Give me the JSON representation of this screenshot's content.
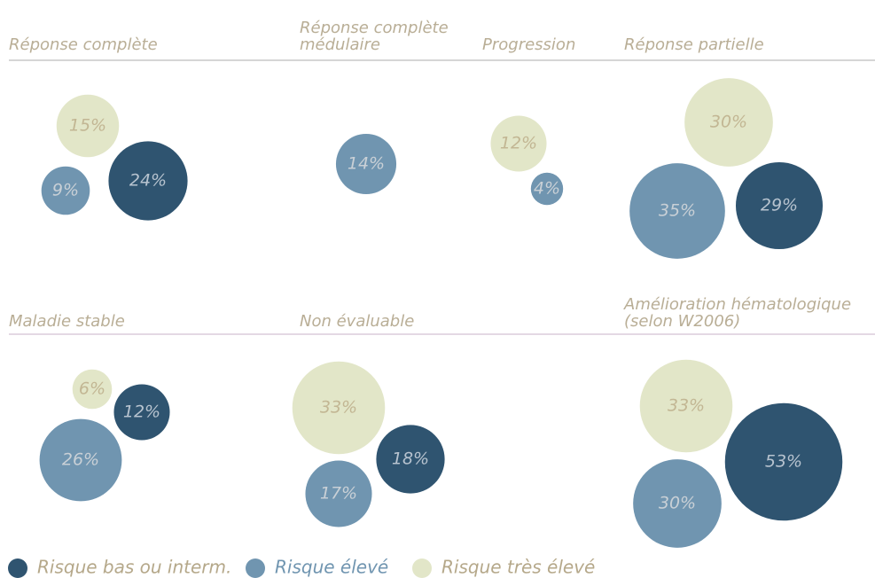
{
  "chart_data": {
    "type": "bubble",
    "series": [
      {
        "name": "Risque bas ou interm.",
        "color": "#2f5470"
      },
      {
        "name": "Risque élevé",
        "color": "#7095b0"
      },
      {
        "name": "Risque très élevé",
        "color": "#e2e6c8"
      }
    ],
    "panels": [
      {
        "title": "Réponse complète",
        "values": [
          24,
          9,
          15
        ],
        "value_labels": [
          "24%",
          "9%",
          "15%"
        ]
      },
      {
        "title": "Réponse complète médulaire",
        "values": [
          null,
          14,
          null
        ],
        "value_labels": [
          null,
          "14%",
          null
        ]
      },
      {
        "title": "Progression",
        "values": [
          null,
          4,
          12
        ],
        "value_labels": [
          null,
          "4%",
          "12%"
        ]
      },
      {
        "title": "Réponse partielle",
        "values": [
          29,
          35,
          30
        ],
        "value_labels": [
          "29%",
          "35%",
          "30%"
        ]
      },
      {
        "title": "Maladie stable",
        "values": [
          12,
          26,
          6
        ],
        "value_labels": [
          "12%",
          "26%",
          "6%"
        ]
      },
      {
        "title": "Non évaluable",
        "values": [
          18,
          17,
          33
        ],
        "value_labels": [
          "18%",
          "17%",
          "33%"
        ]
      },
      {
        "title": "Amélioration hématologique (selon W2006)",
        "values": [
          53,
          30,
          33
        ],
        "value_labels": [
          "53%",
          "30%",
          "33%"
        ]
      }
    ]
  }
}
